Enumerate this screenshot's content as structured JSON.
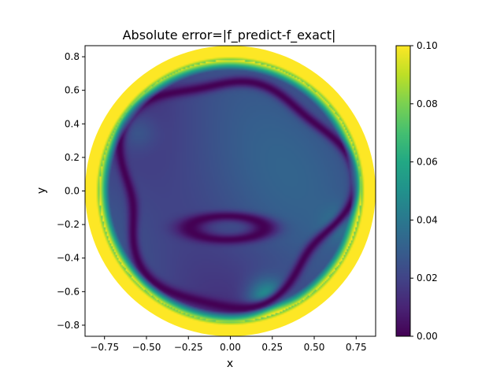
{
  "chart_data": {
    "type": "heatmap",
    "title": "Absolute error=|f_predict-f_exact|",
    "xlabel": "x",
    "ylabel": "y",
    "xlim": [
      -0.866,
      0.866
    ],
    "ylim": [
      -0.866,
      0.866
    ],
    "x_ticks": [
      -0.75,
      -0.5,
      -0.25,
      0.0,
      0.25,
      0.5,
      0.75
    ],
    "x_tick_labels": [
      "−0.75",
      "−0.50",
      "−0.25",
      "0.00",
      "0.25",
      "0.50",
      "0.75"
    ],
    "y_ticks": [
      0.8,
      0.6,
      0.4,
      0.2,
      0.0,
      -0.2,
      -0.4,
      -0.6,
      -0.8
    ],
    "y_tick_labels": [
      "0.8",
      "0.6",
      "0.4",
      "0.2",
      "0.0",
      "−0.2",
      "−0.4",
      "−0.6",
      "−0.8"
    ],
    "domain": {
      "shape": "disk",
      "center": [
        0.0,
        0.0
      ],
      "radius": 0.866
    },
    "colorbar": {
      "colormap": "viridis",
      "vmin": 0.0,
      "vmax": 0.1,
      "ticks": [
        0.0,
        0.02,
        0.04,
        0.06,
        0.08,
        0.1
      ],
      "tick_labels": [
        "0.00",
        "0.02",
        "0.04",
        "0.06",
        "0.08",
        "0.10"
      ]
    },
    "grid": false,
    "features": [
      {
        "feature": "boundary band",
        "value": 0.1,
        "note": "error saturates near radius 0.78–0.866"
      },
      {
        "feature": "near-zero contour ring",
        "radius": 0.67,
        "value": 0.0
      },
      {
        "feature": "interior zero loop",
        "center": [
          -0.02,
          -0.22
        ],
        "rx": 0.22,
        "ry": 0.07,
        "value": 0.0
      },
      {
        "feature": "local maximum",
        "center": [
          0.22,
          -0.64
        ],
        "value": 0.055
      },
      {
        "feature": "local maximum",
        "center": [
          -0.55,
          0.35
        ],
        "value": 0.03
      },
      {
        "feature": "local maximum",
        "center": [
          0.65,
          -0.2
        ],
        "value": 0.03
      }
    ]
  }
}
